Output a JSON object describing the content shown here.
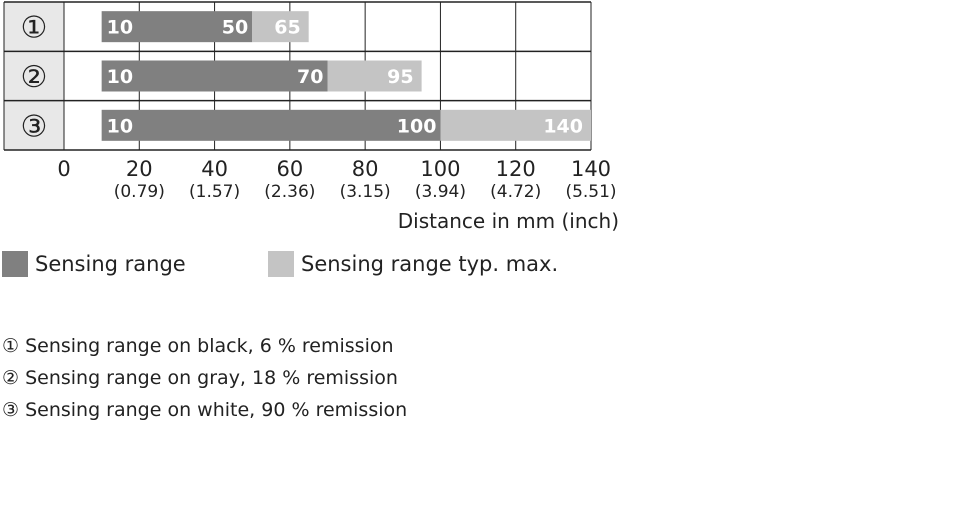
{
  "chart_data": {
    "type": "bar",
    "orientation": "horizontal",
    "stacked": true,
    "categories": [
      "①",
      "②",
      "③"
    ],
    "series": [
      {
        "name": "Sensing range",
        "starts": [
          10,
          10,
          10
        ],
        "ends": [
          50,
          70,
          100
        ]
      },
      {
        "name": "Sensing range typ. max.",
        "starts": [
          50,
          70,
          100
        ],
        "ends": [
          65,
          95,
          140
        ]
      }
    ],
    "bar_labels": [
      {
        "start": "10",
        "range_end": "50",
        "max_end": "65"
      },
      {
        "start": "10",
        "range_end": "70",
        "max_end": "95"
      },
      {
        "start": "10",
        "range_end": "100",
        "max_end": "140"
      }
    ],
    "xlim": [
      0,
      140
    ],
    "xticks": [
      0,
      20,
      40,
      60,
      80,
      100,
      120,
      140
    ],
    "xtick_labels": [
      "0",
      "20",
      "40",
      "60",
      "80",
      "100",
      "120",
      "140"
    ],
    "xtick_sublabels": [
      "",
      "(0.79)",
      "(1.57)",
      "(2.36)",
      "(3.15)",
      "(3.94)",
      "(4.72)",
      "(5.51)"
    ],
    "xlabel": "Distance in mm (inch)",
    "grid": true,
    "legend_position": "bottom-left"
  },
  "legend": [
    {
      "label": "Sensing range",
      "color": "#808080"
    },
    {
      "label": "Sensing range typ. max.",
      "color": "#c4c4c4"
    }
  ],
  "notes": [
    "① Sensing range on black, 6 % remission",
    "② Sensing range on gray, 18 % remission",
    "③ Sensing range on white, 90 % remission"
  ],
  "colors": {
    "range": "#808080",
    "max": "#c4c4c4",
    "grid": "#222222",
    "label_bg": "#e8e8e8",
    "bar_text": "#ffffff"
  }
}
